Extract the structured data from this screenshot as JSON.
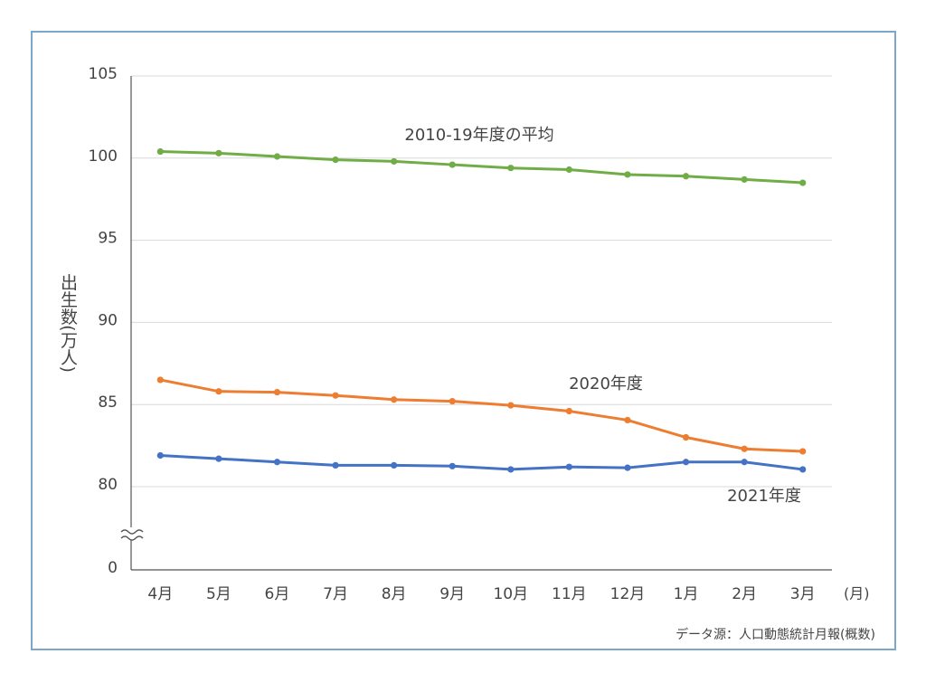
{
  "chart_data": {
    "type": "line",
    "y_label": "出生数(万人)",
    "x_unit": "(月)",
    "source": "データ源：人口動態統計月報(概数)",
    "categories": [
      "4月",
      "5月",
      "6月",
      "7月",
      "8月",
      "9月",
      "10月",
      "11月",
      "12月",
      "1月",
      "2月",
      "3月"
    ],
    "series": [
      {
        "name": "2010-19年度の平均",
        "color": "#70ad47",
        "values": [
          100.4,
          100.3,
          100.1,
          99.9,
          99.8,
          99.6,
          99.4,
          99.3,
          99.0,
          98.9,
          98.7,
          98.5
        ]
      },
      {
        "name": "2020年度",
        "color": "#ed7d31",
        "values": [
          86.5,
          85.8,
          85.75,
          85.55,
          85.3,
          85.2,
          84.95,
          84.6,
          84.05,
          83.0,
          82.3,
          82.15
        ]
      },
      {
        "name": "2021年度",
        "color": "#4472c4",
        "values": [
          81.9,
          81.7,
          81.5,
          81.3,
          81.3,
          81.25,
          81.05,
          81.2,
          81.15,
          81.5,
          81.5,
          81.05
        ]
      }
    ],
    "ylim": [
      0,
      105
    ],
    "yticks": [
      0,
      80,
      85,
      90,
      95,
      100,
      105
    ],
    "axis_break": true,
    "grid": true
  }
}
